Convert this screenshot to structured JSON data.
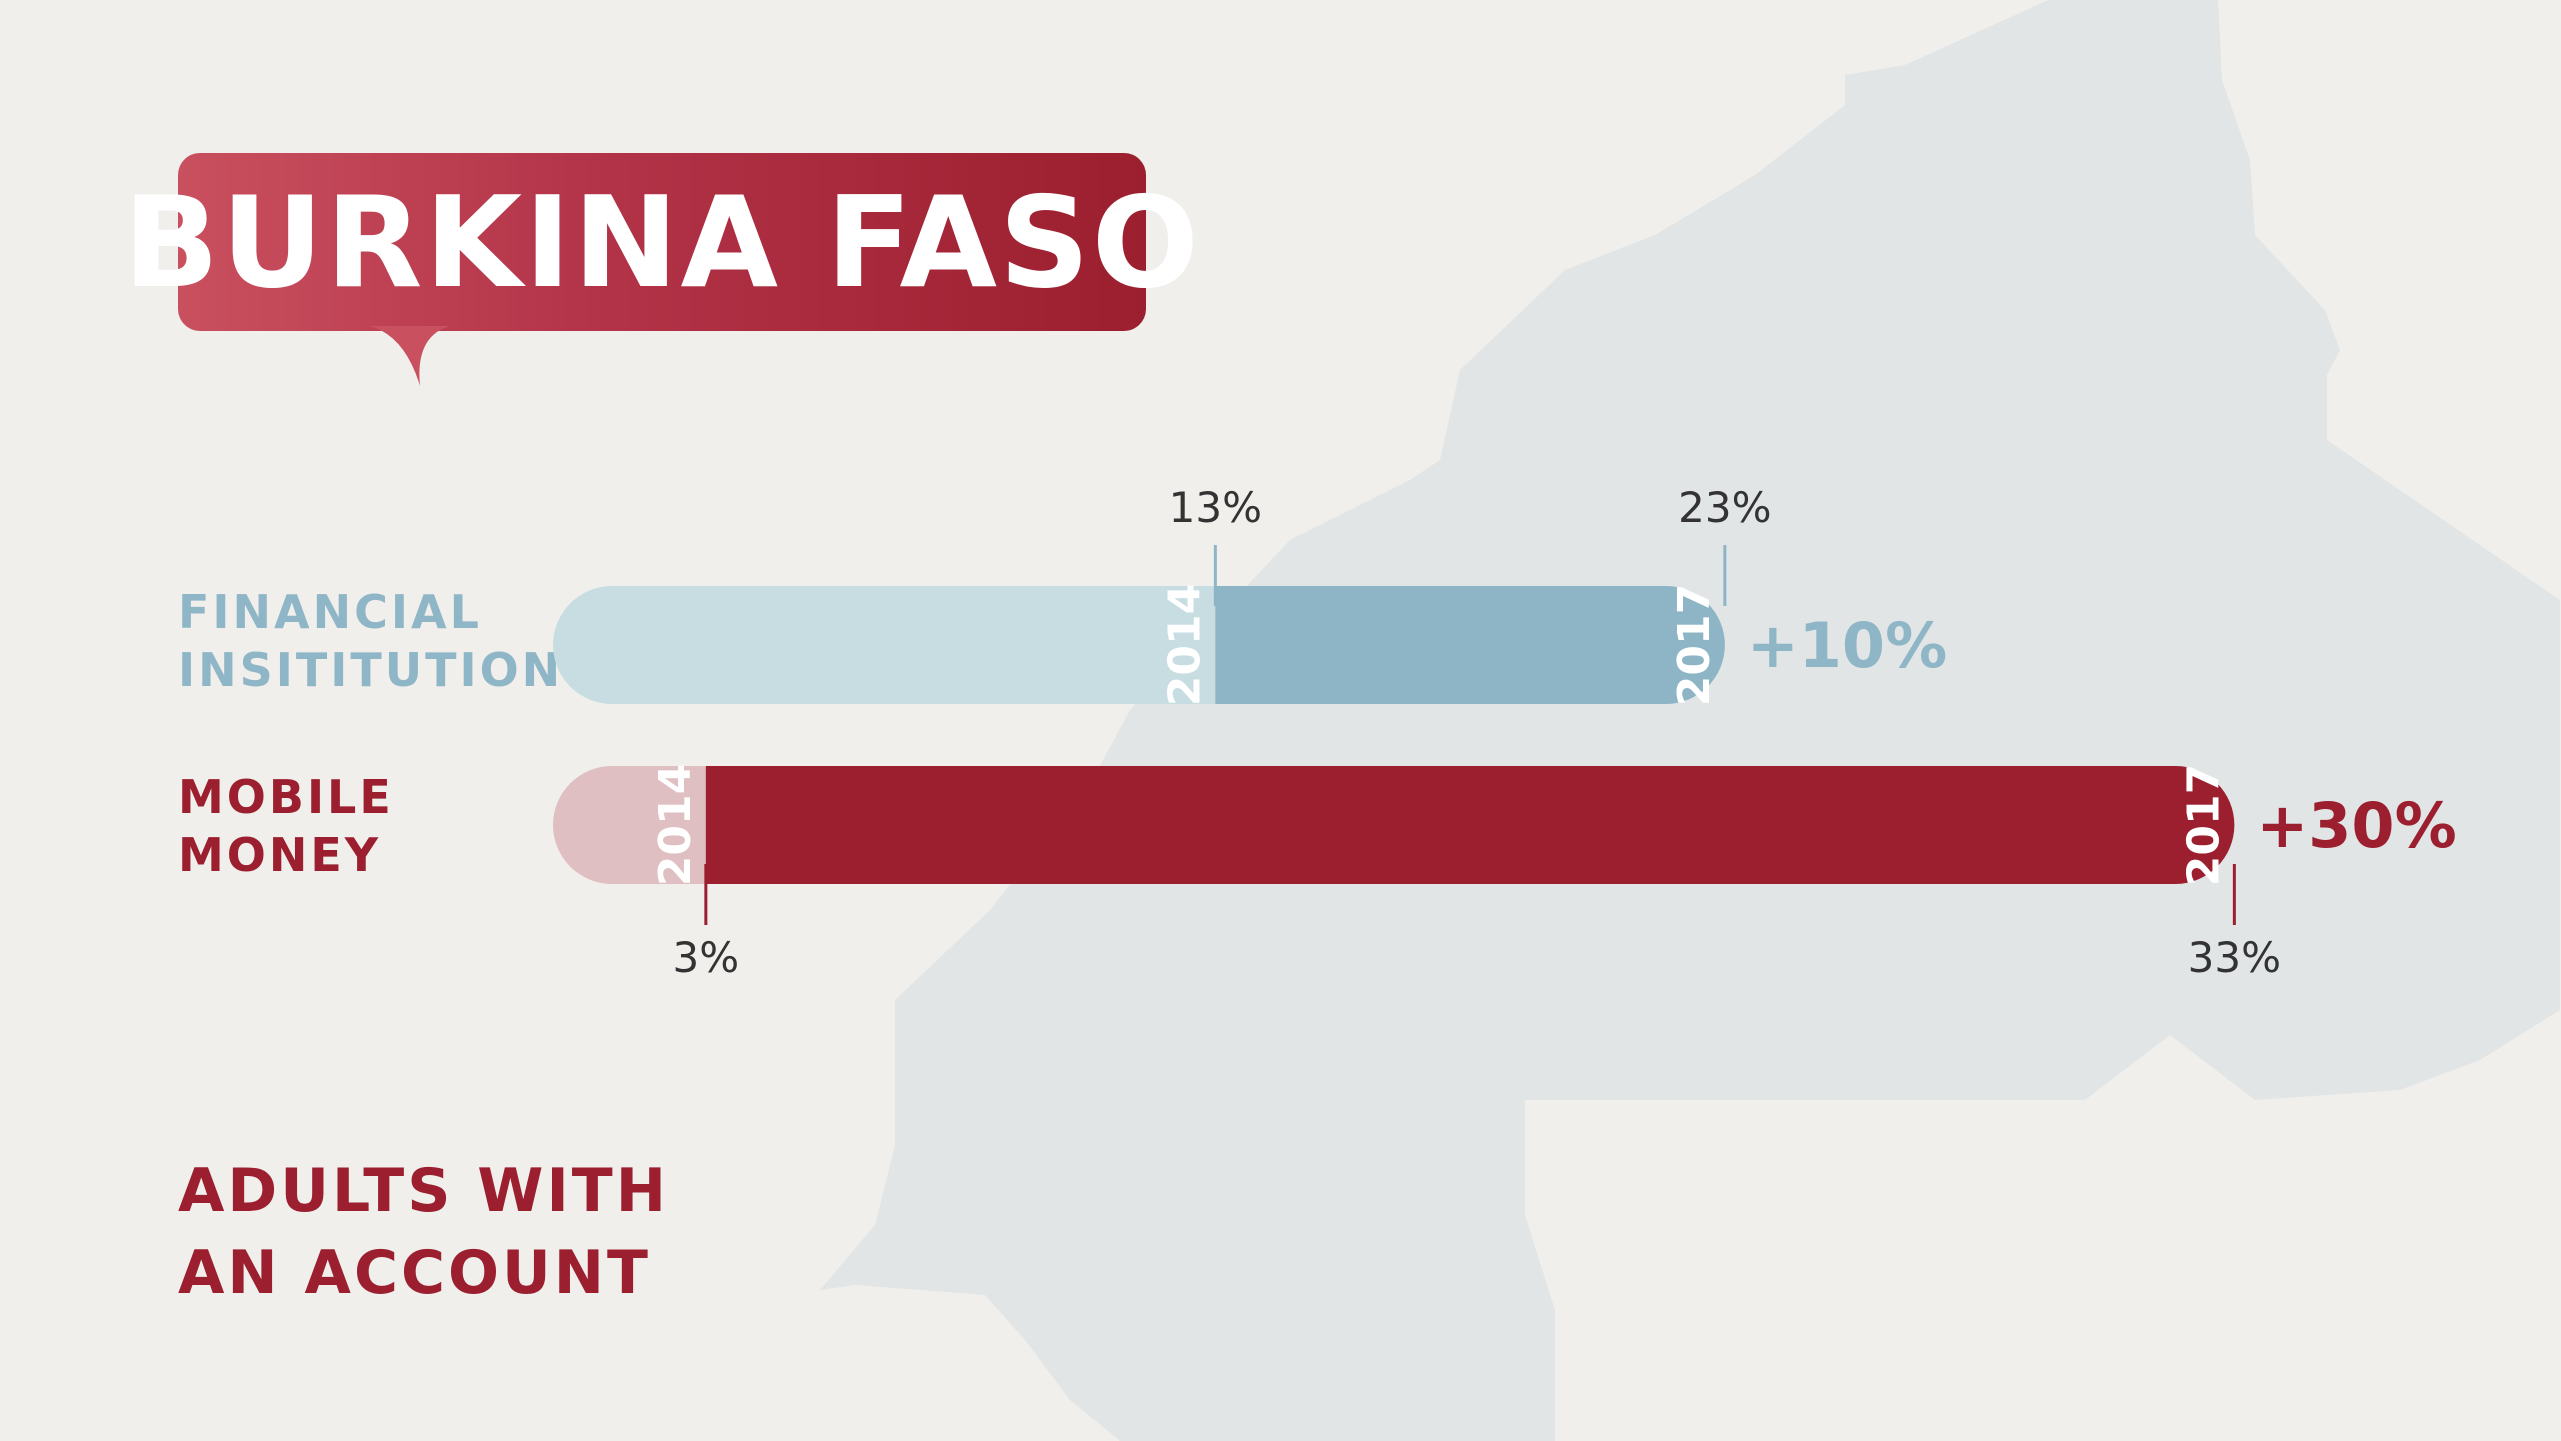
{
  "title": "BURKINA FASO",
  "subtitle": "ADULTS WITH\nAN ACCOUNT",
  "colors": {
    "background": "#f0efec",
    "map": "#e1e5e6",
    "title_gradient_start": "#c9505f",
    "title_gradient_end": "#9b1f2e",
    "financial_light": "#c7dde2",
    "financial_dark": "#8db5c6",
    "financial_text": "#8fb6c7",
    "mobile_light": "#dfbfc1",
    "mobile_dark": "#9b1f2e",
    "mobile_text": "#9b1f2e",
    "value_text": "#333333"
  },
  "chart_data": {
    "type": "bar",
    "orientation": "horizontal",
    "categories": [
      "FINANCIAL\nINSITITUTION",
      "MOBILE\nMONEY"
    ],
    "series": [
      {
        "name": "2014",
        "values": [
          13,
          3
        ],
        "labels": [
          "13%",
          "3%"
        ]
      },
      {
        "name": "2017",
        "values": [
          23,
          33
        ],
        "labels": [
          "23%",
          "33%"
        ]
      }
    ],
    "change_labels": [
      "+10%",
      "+30%"
    ],
    "year_labels": [
      "2014",
      "2017"
    ],
    "xlim": [
      0,
      33
    ],
    "grid": false,
    "title": "BURKINA FASO",
    "xlabel": "",
    "ylabel": ""
  }
}
